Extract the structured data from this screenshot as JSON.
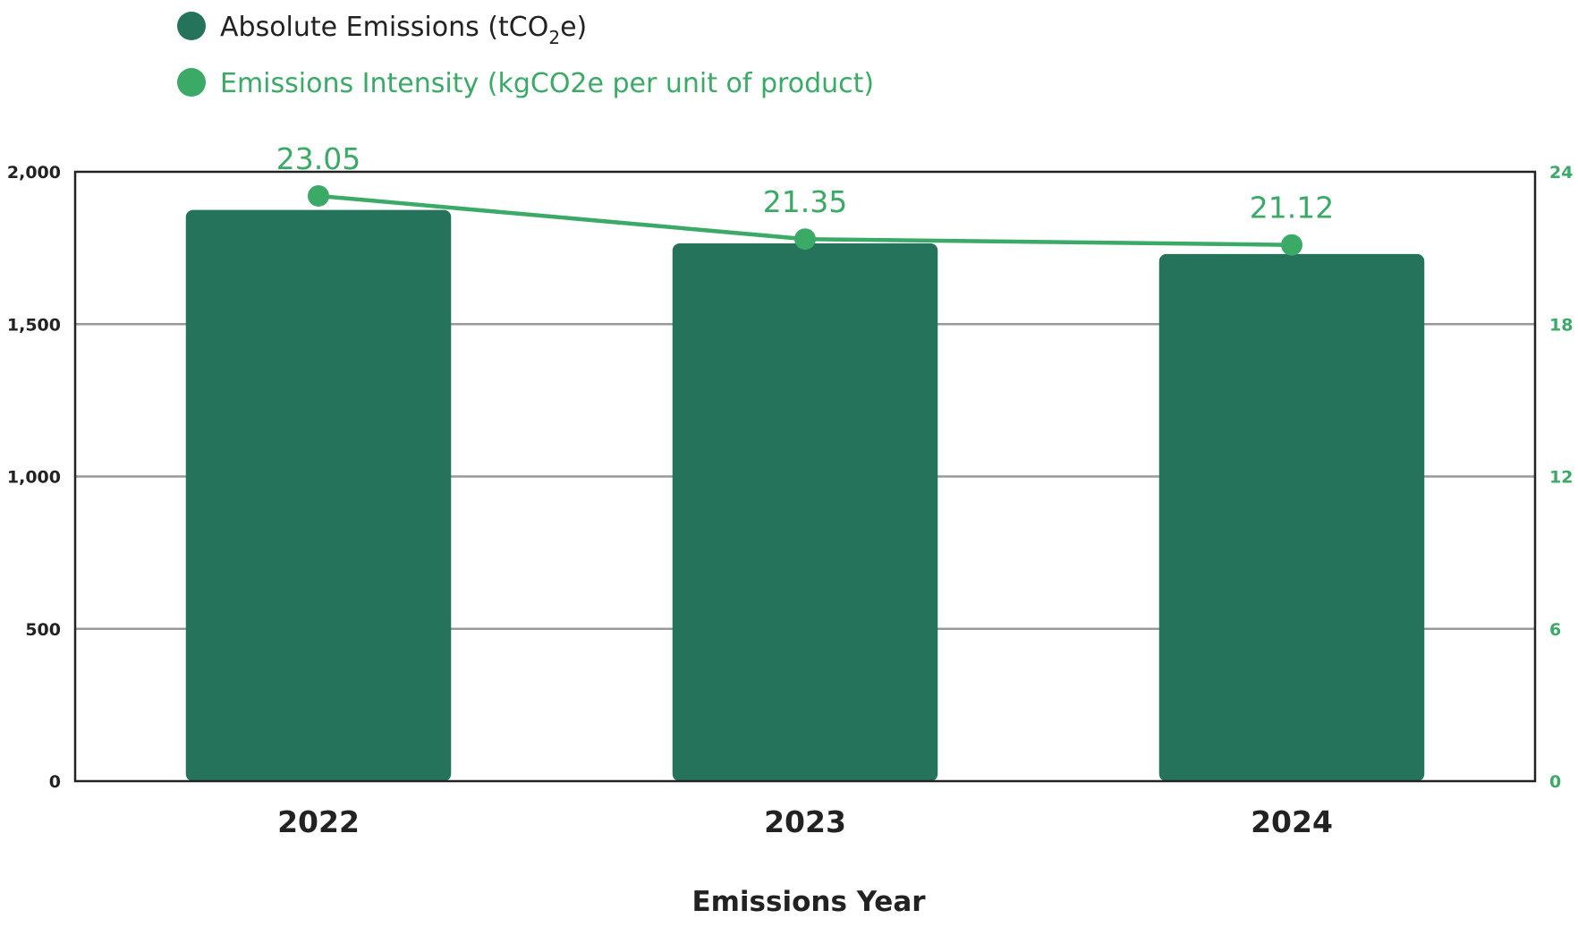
{
  "chart_data": {
    "type": "bar",
    "categories": [
      "2022",
      "2023",
      "2024"
    ],
    "xlabel": "Emissions Year",
    "legend_position": "top-left",
    "grid": true,
    "colors": {
      "bar": "#24735a",
      "line": "#3aaa66",
      "axis": "#222222",
      "grid": "#999999"
    },
    "series": [
      {
        "name_parts": [
          "Absolute Emissions (tCO",
          "2",
          "e)"
        ],
        "type": "bar",
        "axis": "left",
        "values": [
          1875,
          1765,
          1730
        ]
      },
      {
        "name": "Emissions Intensity (kgCO2e per unit of product)",
        "type": "line",
        "axis": "right",
        "values": [
          23.05,
          21.35,
          21.12
        ],
        "labels": [
          "23.05",
          "21.35",
          "21.12"
        ]
      }
    ],
    "y_left": {
      "range": [
        0,
        2000
      ],
      "ticks": [
        0,
        500,
        1000,
        1500,
        2000
      ],
      "tick_labels": [
        "0",
        "500",
        "1,000",
        "1,500",
        "2,000"
      ]
    },
    "y_right": {
      "range": [
        0,
        24
      ],
      "ticks": [
        0,
        6,
        12,
        18,
        24
      ],
      "tick_labels": [
        "0",
        "6",
        "12",
        "18",
        "24"
      ]
    }
  }
}
